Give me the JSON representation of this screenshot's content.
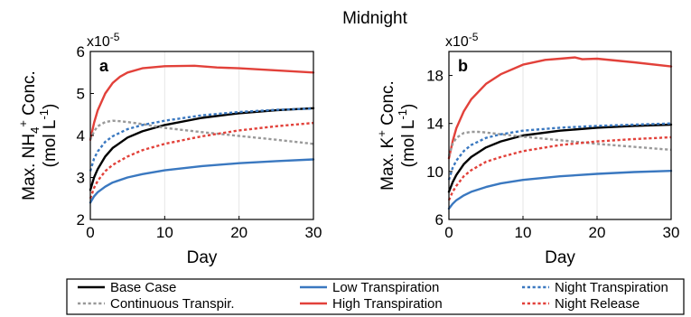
{
  "figure_title": "Midnight",
  "chart_data": [
    {
      "type": "line",
      "panel_label": "a",
      "exponent_label": "x10",
      "exponent_power": "-5",
      "ylabel_line1_pre": "Max. NH",
      "ylabel_sub": "4",
      "ylabel_sup": "+",
      "ylabel_line1_post": " Conc.",
      "ylabel_line2_pre": "(mol L",
      "ylabel_line2_sup": "-1",
      "ylabel_line2_post": ")",
      "xlabel": "Day",
      "xlim": [
        0,
        30
      ],
      "ylim": [
        2,
        6
      ],
      "xticks": [
        0,
        10,
        20,
        30
      ],
      "yticks": [
        2,
        3,
        4,
        5,
        6
      ],
      "grid": "vertical",
      "series": [
        {
          "key": "base",
          "x": [
            0,
            0.5,
            1,
            2,
            3,
            5,
            7,
            10,
            15,
            20,
            25,
            30
          ],
          "y": [
            2.7,
            3.0,
            3.2,
            3.5,
            3.7,
            3.95,
            4.1,
            4.25,
            4.42,
            4.53,
            4.6,
            4.65
          ]
        },
        {
          "key": "low",
          "x": [
            0,
            0.5,
            1,
            2,
            3,
            5,
            7,
            10,
            15,
            20,
            25,
            30
          ],
          "y": [
            2.4,
            2.55,
            2.65,
            2.78,
            2.88,
            3.0,
            3.08,
            3.17,
            3.27,
            3.34,
            3.39,
            3.43
          ]
        },
        {
          "key": "high",
          "x": [
            0,
            0.5,
            1,
            2,
            3,
            4,
            5,
            7,
            10,
            14,
            17,
            20,
            25,
            30
          ],
          "y": [
            3.9,
            4.3,
            4.6,
            5.0,
            5.25,
            5.4,
            5.5,
            5.6,
            5.65,
            5.66,
            5.62,
            5.6,
            5.55,
            5.5
          ]
        },
        {
          "key": "cont",
          "x": [
            0,
            0.5,
            1,
            2,
            3,
            4,
            5,
            7,
            10,
            15,
            20,
            25,
            30
          ],
          "y": [
            3.9,
            4.1,
            4.22,
            4.32,
            4.35,
            4.34,
            4.32,
            4.27,
            4.18,
            4.08,
            3.99,
            3.9,
            3.8
          ]
        },
        {
          "key": "night_t",
          "x": [
            0,
            0.5,
            1,
            2,
            3,
            5,
            7,
            10,
            15,
            20,
            25,
            30
          ],
          "y": [
            3.15,
            3.45,
            3.62,
            3.85,
            3.98,
            4.15,
            4.25,
            4.35,
            4.48,
            4.56,
            4.61,
            4.64
          ]
        },
        {
          "key": "night_r",
          "x": [
            0,
            0.5,
            1,
            2,
            3,
            5,
            7,
            10,
            15,
            20,
            25,
            30
          ],
          "y": [
            2.5,
            2.75,
            2.92,
            3.15,
            3.3,
            3.5,
            3.65,
            3.8,
            3.98,
            4.12,
            4.22,
            4.3
          ]
        }
      ]
    },
    {
      "type": "line",
      "panel_label": "b",
      "exponent_label": "x10",
      "exponent_power": "-5",
      "ylabel_line1_pre": "Max. K",
      "ylabel_sub": "",
      "ylabel_sup": "+",
      "ylabel_line1_post": " Conc.",
      "ylabel_line2_pre": "(mol L",
      "ylabel_line2_sup": "-1",
      "ylabel_line2_post": ")",
      "xlabel": "Day",
      "xlim": [
        0,
        30
      ],
      "ylim": [
        6,
        20
      ],
      "xticks": [
        0,
        10,
        20,
        30
      ],
      "yticks": [
        6,
        10,
        14,
        18
      ],
      "grid": "vertical",
      "series": [
        {
          "key": "base",
          "x": [
            0,
            0.5,
            1,
            2,
            3,
            5,
            7,
            10,
            15,
            20,
            25,
            30
          ],
          "y": [
            8.3,
            9.1,
            9.7,
            10.6,
            11.2,
            12.0,
            12.5,
            13.0,
            13.4,
            13.65,
            13.8,
            13.9
          ]
        },
        {
          "key": "low",
          "x": [
            0,
            0.5,
            1,
            2,
            3,
            5,
            7,
            10,
            15,
            20,
            25,
            30
          ],
          "y": [
            6.9,
            7.3,
            7.6,
            8.0,
            8.3,
            8.7,
            9.0,
            9.3,
            9.6,
            9.8,
            9.95,
            10.05
          ]
        },
        {
          "key": "high",
          "x": [
            0,
            0.5,
            1,
            2,
            3,
            5,
            7,
            10,
            13,
            15,
            17,
            18,
            20,
            25,
            30
          ],
          "y": [
            11.1,
            12.5,
            13.6,
            15.0,
            16.0,
            17.3,
            18.1,
            18.9,
            19.3,
            19.4,
            19.5,
            19.35,
            19.4,
            19.1,
            18.75
          ]
        },
        {
          "key": "cont",
          "x": [
            0,
            0.5,
            1,
            2,
            3,
            4,
            5,
            7,
            10,
            15,
            20,
            25,
            30
          ],
          "y": [
            11.3,
            12.3,
            12.8,
            13.2,
            13.3,
            13.3,
            13.25,
            13.1,
            12.9,
            12.6,
            12.3,
            12.05,
            11.8
          ]
        },
        {
          "key": "night_t",
          "x": [
            0,
            0.5,
            1,
            2,
            3,
            5,
            7,
            10,
            15,
            20,
            25,
            30
          ],
          "y": [
            9.3,
            10.3,
            10.9,
            11.7,
            12.2,
            12.8,
            13.1,
            13.4,
            13.65,
            13.8,
            13.9,
            14.0
          ]
        },
        {
          "key": "night_r",
          "x": [
            0,
            0.5,
            1,
            2,
            3,
            5,
            7,
            10,
            15,
            20,
            25,
            30
          ],
          "y": [
            7.6,
            8.3,
            8.8,
            9.6,
            10.1,
            10.8,
            11.2,
            11.7,
            12.2,
            12.5,
            12.7,
            12.85
          ]
        }
      ]
    }
  ],
  "legend": {
    "placement": "bottom",
    "entries": [
      {
        "key": "base",
        "label": "Base Case",
        "color": "#000000",
        "style": "solid"
      },
      {
        "key": "cont",
        "label": "Continuous Transpir.",
        "color": "#999999",
        "style": "dotted"
      },
      {
        "key": "low",
        "label": "Low Transpiration",
        "color": "#3a78c0",
        "style": "solid"
      },
      {
        "key": "high",
        "label": "High Transpiration",
        "color": "#e2413a",
        "style": "solid"
      },
      {
        "key": "night_t",
        "label": "Night Transpiration",
        "color": "#3a78c0",
        "style": "dotted"
      },
      {
        "key": "night_r",
        "label": "Night Release",
        "color": "#e2413a",
        "style": "dotted"
      }
    ]
  }
}
